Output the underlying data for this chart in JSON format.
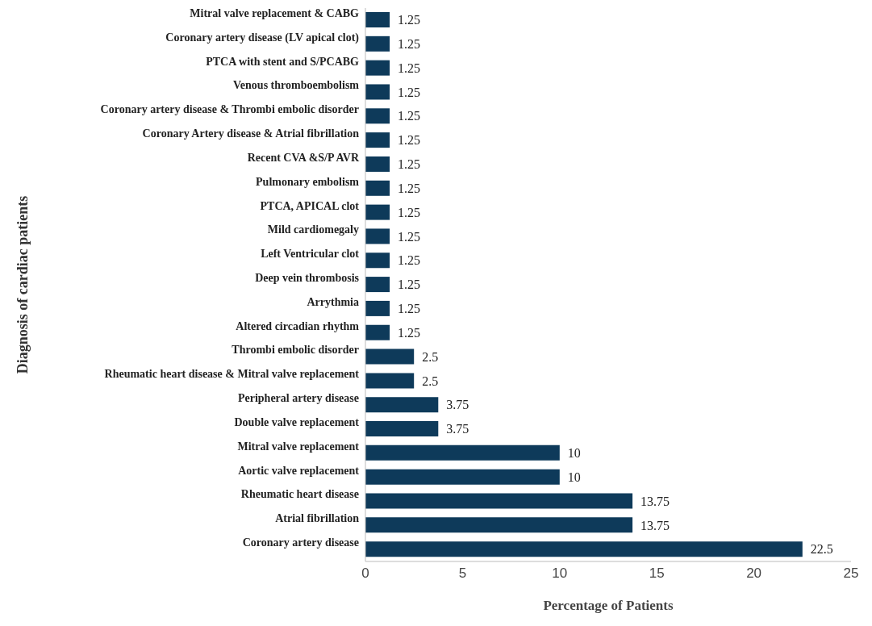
{
  "chart_data": {
    "type": "bar",
    "orientation": "horizontal",
    "xlabel": "Percentage of Patients",
    "ylabel": "Diagnosis  of  cardiac  patients",
    "categories": [
      "Mitral valve replacement & CABG",
      "Coronary artery disease (LV apical clot)",
      "PTCA with stent and S/PCABG",
      "Venous thromboembolism",
      "Coronary artery disease & Thrombi embolic disorder",
      "Coronary Artery disease & Atrial fibrillation",
      "Recent CVA &S/P AVR",
      "Pulmonary embolism",
      "PTCA, APICAL clot",
      "Mild cardiomegaly",
      "Left Ventricular clot",
      "Deep vein thrombosis",
      "Arrythmia",
      "Altered circadian rhythm",
      "Thrombi embolic disorder",
      "Rheumatic heart disease & Mitral valve replacement",
      "Peripheral artery disease",
      "Double valve replacement",
      "Mitral valve replacement",
      "Aortic valve replacement",
      "Rheumatic heart disease",
      "Atrial fibrillation",
      "Coronary artery disease"
    ],
    "values": [
      1.25,
      1.25,
      1.25,
      1.25,
      1.25,
      1.25,
      1.25,
      1.25,
      1.25,
      1.25,
      1.25,
      1.25,
      1.25,
      1.25,
      2.5,
      2.5,
      3.75,
      3.75,
      10,
      10,
      13.75,
      13.75,
      22.5
    ],
    "color": "#0e3a5a",
    "xlim": [
      0,
      25
    ],
    "xticks": [
      0,
      5,
      10,
      15,
      20,
      25
    ],
    "data_labels": true
  }
}
